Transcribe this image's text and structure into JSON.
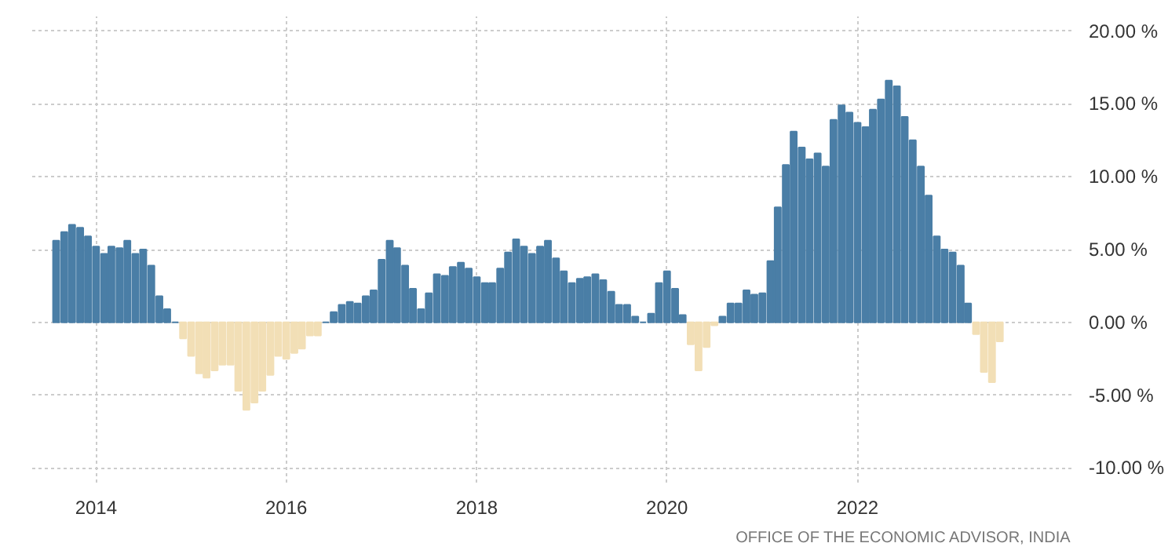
{
  "chart_data": {
    "type": "bar",
    "x": [
      "2013-08",
      "2013-09",
      "2013-10",
      "2013-11",
      "2013-12",
      "2014-01",
      "2014-02",
      "2014-03",
      "2014-04",
      "2014-05",
      "2014-06",
      "2014-07",
      "2014-08",
      "2014-09",
      "2014-10",
      "2014-11",
      "2014-12",
      "2015-01",
      "2015-02",
      "2015-03",
      "2015-04",
      "2015-05",
      "2015-06",
      "2015-07",
      "2015-08",
      "2015-09",
      "2015-10",
      "2015-11",
      "2015-12",
      "2016-01",
      "2016-02",
      "2016-03",
      "2016-04",
      "2016-05",
      "2016-06",
      "2016-07",
      "2016-08",
      "2016-09",
      "2016-10",
      "2016-11",
      "2016-12",
      "2017-01",
      "2017-02",
      "2017-03",
      "2017-04",
      "2017-05",
      "2017-06",
      "2017-07",
      "2017-08",
      "2017-09",
      "2017-10",
      "2017-11",
      "2017-12",
      "2018-01",
      "2018-02",
      "2018-03",
      "2018-04",
      "2018-05",
      "2018-06",
      "2018-07",
      "2018-08",
      "2018-09",
      "2018-10",
      "2018-11",
      "2018-12",
      "2019-01",
      "2019-02",
      "2019-03",
      "2019-04",
      "2019-05",
      "2019-06",
      "2019-07",
      "2019-08",
      "2019-09",
      "2019-10",
      "2019-11",
      "2019-12",
      "2020-01",
      "2020-02",
      "2020-03",
      "2020-04",
      "2020-05",
      "2020-06",
      "2020-07",
      "2020-08",
      "2020-09",
      "2020-10",
      "2020-11",
      "2020-12",
      "2021-01",
      "2021-02",
      "2021-03",
      "2021-04",
      "2021-05",
      "2021-06",
      "2021-07",
      "2021-08",
      "2021-09",
      "2021-10",
      "2021-11",
      "2021-12",
      "2022-01",
      "2022-02",
      "2022-03",
      "2022-04",
      "2022-05",
      "2022-06",
      "2022-07",
      "2022-08",
      "2022-09",
      "2022-10",
      "2022-11",
      "2022-12",
      "2023-01",
      "2023-02",
      "2023-03",
      "2023-04",
      "2023-05",
      "2023-06",
      "2023-07"
    ],
    "values": [
      5.6,
      6.2,
      6.7,
      6.5,
      5.9,
      5.2,
      4.7,
      5.2,
      5.1,
      5.6,
      4.7,
      5.0,
      3.9,
      1.8,
      0.9,
      0.0,
      -1.1,
      -2.3,
      -3.5,
      -3.8,
      -3.3,
      -2.9,
      -2.9,
      -4.7,
      -6.0,
      -5.5,
      -4.7,
      -3.6,
      -2.3,
      -2.5,
      -2.1,
      -1.8,
      -0.9,
      -0.9,
      0.0,
      0.7,
      1.2,
      1.4,
      1.3,
      1.8,
      2.2,
      4.3,
      5.6,
      5.1,
      3.9,
      2.3,
      0.9,
      2.0,
      3.3,
      3.2,
      3.8,
      4.1,
      3.7,
      3.1,
      2.7,
      2.7,
      3.7,
      4.8,
      5.7,
      5.2,
      4.7,
      5.2,
      5.6,
      4.4,
      3.5,
      2.7,
      3.0,
      3.1,
      3.3,
      2.9,
      2.1,
      1.2,
      1.2,
      0.4,
      0.0,
      0.6,
      2.7,
      3.5,
      2.3,
      0.5,
      -1.5,
      -3.3,
      -1.7,
      -0.2,
      0.4,
      1.3,
      1.3,
      2.2,
      1.9,
      2.0,
      4.2,
      7.9,
      10.8,
      13.1,
      12.0,
      11.2,
      11.6,
      10.7,
      13.9,
      14.9,
      14.4,
      13.7,
      13.4,
      14.6,
      15.3,
      16.6,
      16.2,
      14.1,
      12.5,
      10.7,
      8.7,
      5.9,
      5.0,
      4.8,
      3.9,
      1.3,
      -0.8,
      -3.4,
      -4.1,
      -1.3
    ],
    "colors": [
      "#4a7ea6",
      "#4a7ea6",
      "#4a7ea6",
      "#4a7ea6",
      "#4a7ea6",
      "#4a7ea6",
      "#4a7ea6",
      "#4a7ea6",
      "#4a7ea6",
      "#4a7ea6",
      "#4a7ea6",
      "#4a7ea6",
      "#4a7ea6",
      "#4a7ea6",
      "#4a7ea6",
      "#4a7ea6",
      "#f2dfb6",
      "#f2dfb6",
      "#f2dfb6",
      "#f2dfb6",
      "#f2dfb6",
      "#f2dfb6",
      "#f2dfb6",
      "#f2dfb6",
      "#f2dfb6",
      "#f2dfb6",
      "#f2dfb6",
      "#f2dfb6",
      "#f2dfb6",
      "#f2dfb6",
      "#f2dfb6",
      "#f2dfb6",
      "#f2dfb6",
      "#f2dfb6",
      "#4a7ea6",
      "#4a7ea6",
      "#4a7ea6",
      "#4a7ea6",
      "#4a7ea6",
      "#4a7ea6",
      "#4a7ea6",
      "#4a7ea6",
      "#4a7ea6",
      "#4a7ea6",
      "#4a7ea6",
      "#4a7ea6",
      "#4a7ea6",
      "#4a7ea6",
      "#4a7ea6",
      "#4a7ea6",
      "#4a7ea6",
      "#4a7ea6",
      "#4a7ea6",
      "#4a7ea6",
      "#4a7ea6",
      "#4a7ea6",
      "#4a7ea6",
      "#4a7ea6",
      "#4a7ea6",
      "#4a7ea6",
      "#4a7ea6",
      "#4a7ea6",
      "#4a7ea6",
      "#4a7ea6",
      "#4a7ea6",
      "#4a7ea6",
      "#4a7ea6",
      "#4a7ea6",
      "#4a7ea6",
      "#4a7ea6",
      "#4a7ea6",
      "#4a7ea6",
      "#4a7ea6",
      "#4a7ea6",
      "#4a7ea6",
      "#4a7ea6",
      "#4a7ea6",
      "#4a7ea6",
      "#4a7ea6",
      "#4a7ea6",
      "#f2dfb6",
      "#f2dfb6",
      "#f2dfb6",
      "#f2dfb6",
      "#4a7ea6",
      "#4a7ea6",
      "#4a7ea6",
      "#4a7ea6",
      "#4a7ea6",
      "#4a7ea6",
      "#4a7ea6",
      "#4a7ea6",
      "#4a7ea6",
      "#4a7ea6",
      "#4a7ea6",
      "#4a7ea6",
      "#4a7ea6",
      "#4a7ea6",
      "#4a7ea6",
      "#4a7ea6",
      "#4a7ea6",
      "#4a7ea6",
      "#4a7ea6",
      "#4a7ea6",
      "#4a7ea6",
      "#4a7ea6",
      "#4a7ea6",
      "#4a7ea6",
      "#4a7ea6",
      "#4a7ea6",
      "#4a7ea6",
      "#4a7ea6",
      "#4a7ea6",
      "#4a7ea6",
      "#4a7ea6",
      "#4a7ea6",
      "#f2dfb6",
      "#f2dfb6",
      "#f2dfb6",
      "#f2dfb6"
    ],
    "xlim": [
      "2013-05-01",
      "2024-04-01"
    ],
    "xticks": [
      "2014",
      "2016",
      "2018",
      "2020",
      "2022"
    ],
    "ylim": [
      -11,
      21
    ],
    "yticks": [
      {
        "value": -10,
        "label": "-10.00 %"
      },
      {
        "value": -5,
        "label": "-5.00 %"
      },
      {
        "value": 0,
        "label": "0.00 %"
      },
      {
        "value": 5,
        "label": "5.00 %"
      },
      {
        "value": 10,
        "label": "10.00 %"
      },
      {
        "value": 15,
        "label": "15.00 %"
      },
      {
        "value": 20,
        "label": "20.00 %"
      }
    ],
    "grid": true,
    "annotations": [
      "OFFICE OF THE ECONOMIC ADVISOR, INDIA"
    ]
  }
}
